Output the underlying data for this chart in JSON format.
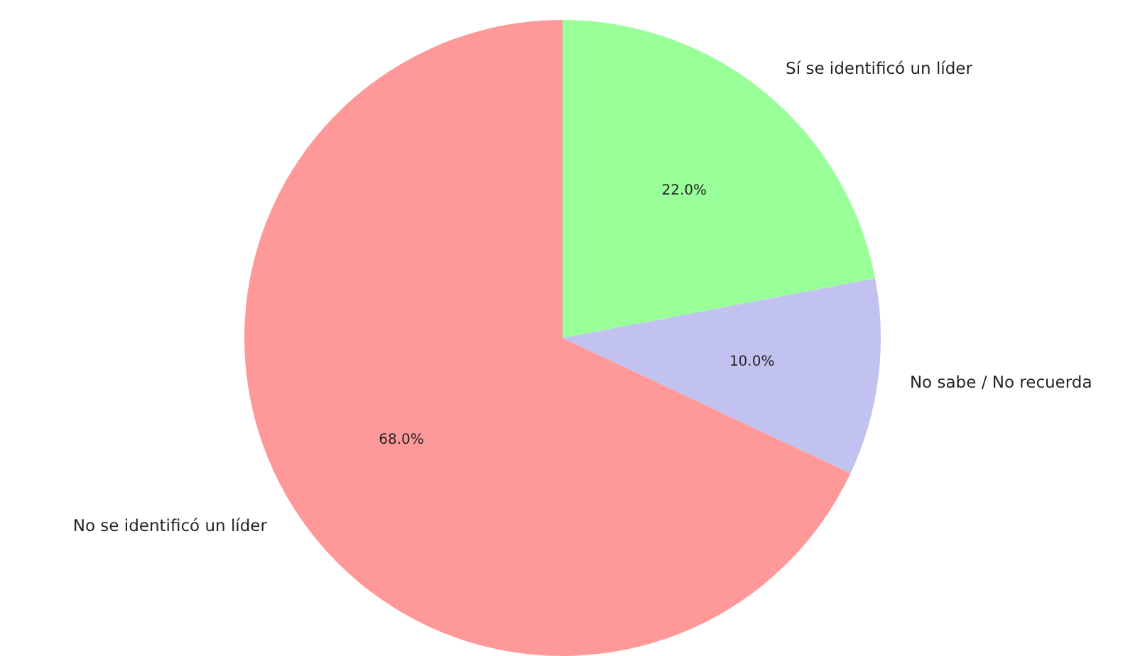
{
  "chart_data": {
    "type": "pie",
    "categories": [
      "Sí se identificó un líder",
      "No sabe / No recuerda",
      "No se identificó un líder"
    ],
    "values": [
      22,
      10,
      68
    ],
    "colors": [
      "#99ff99",
      "#c2c2f0",
      "#ff9999"
    ],
    "value_labels": [
      "22.0%",
      "10.0%",
      "68.0%"
    ]
  }
}
